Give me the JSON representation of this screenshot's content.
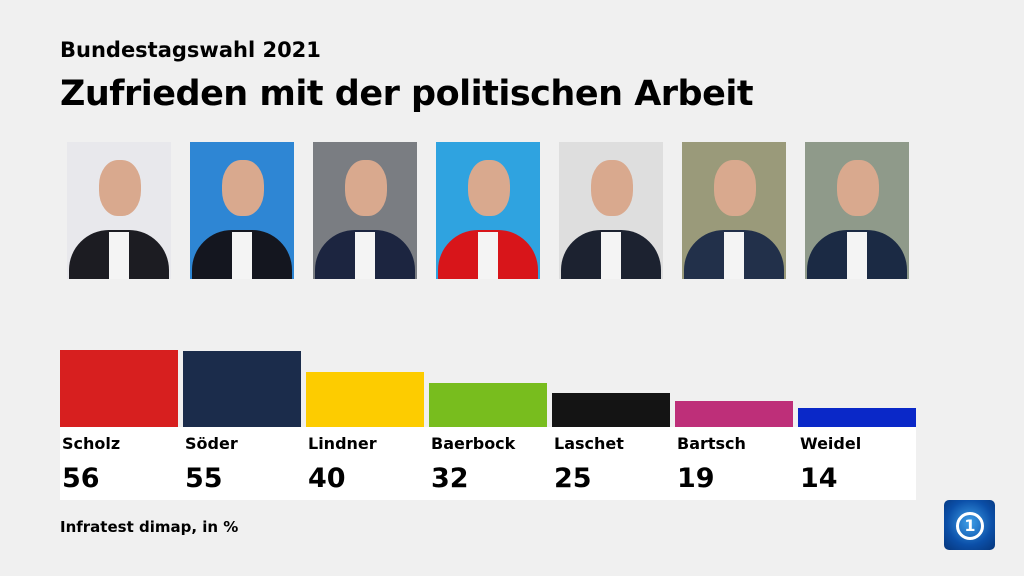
{
  "header": {
    "subtitle": "Bundestagswahl 2021",
    "title": "Zufrieden mit der politischen Arbeit"
  },
  "chart_data": {
    "type": "bar",
    "title": "Zufrieden mit der politischen Arbeit",
    "categories": [
      "Scholz",
      "Söder",
      "Lindner",
      "Baerbock",
      "Laschet",
      "Bartsch",
      "Weidel"
    ],
    "values": [
      56,
      55,
      40,
      32,
      25,
      19,
      14
    ],
    "colors": [
      "#d71f1f",
      "#1b2c4b",
      "#fdcc00",
      "#78bd1e",
      "#141414",
      "#be2f79",
      "#0a28c8"
    ],
    "unit": "%",
    "ylim": [
      0,
      56
    ]
  },
  "photos": [
    {
      "bg": "#e8e8ec",
      "suit": "#1c1c22"
    },
    {
      "bg": "#2e86d4",
      "suit": "#14161f"
    },
    {
      "bg": "#7a7d82",
      "suit": "#1c2540"
    },
    {
      "bg": "#2fa3e0",
      "suit": "#d8151a"
    },
    {
      "bg": "#dedede",
      "suit": "#1c2230"
    },
    {
      "bg": "#9a9a7a",
      "suit": "#22304a"
    },
    {
      "bg": "#8f9a8a",
      "suit": "#1b2a44"
    }
  ],
  "footer": {
    "source": "Infratest dimap, in %"
  },
  "logo": {
    "glyph": "1"
  }
}
